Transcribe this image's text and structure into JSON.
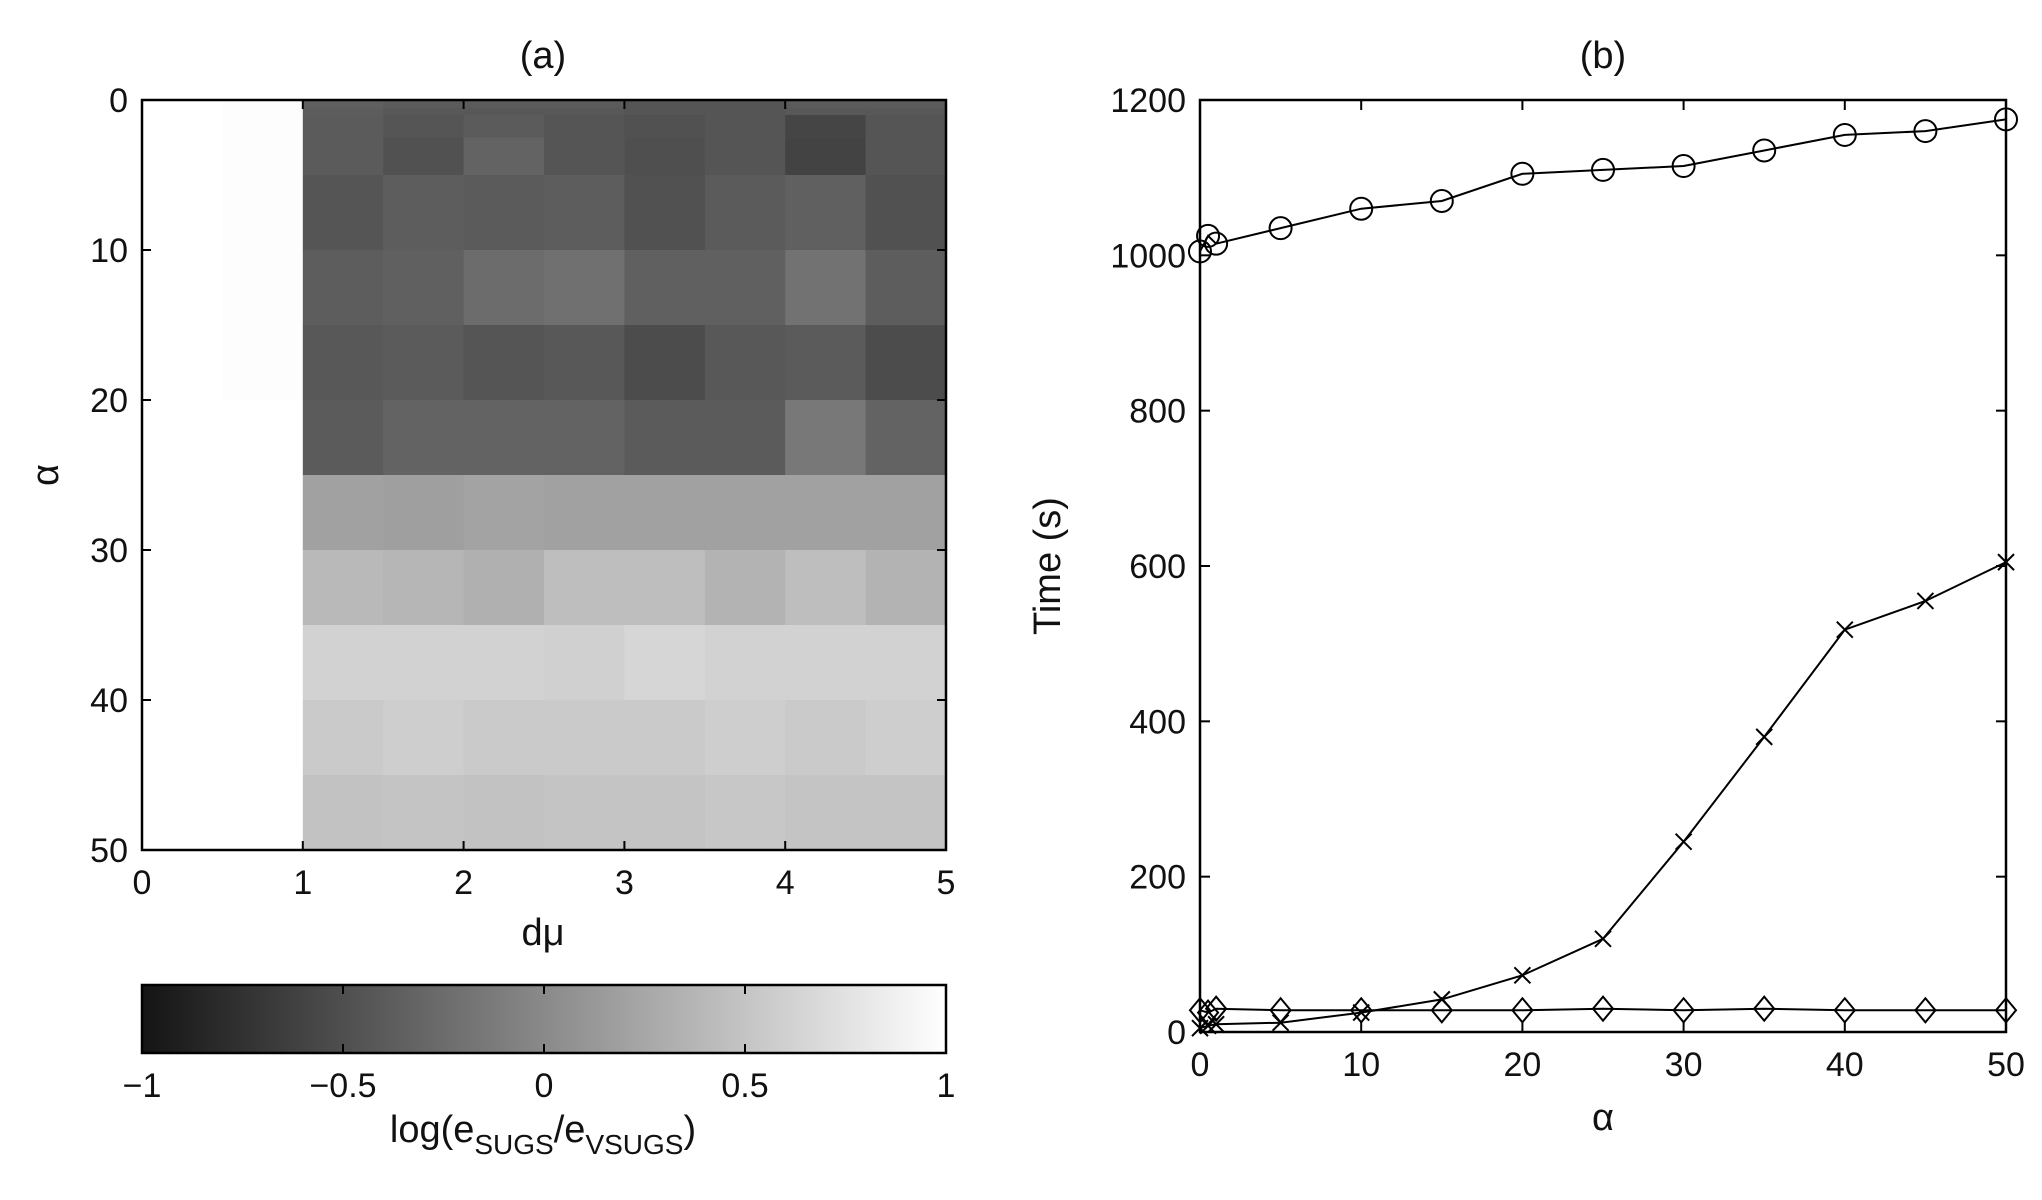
{
  "chart_data": [
    {
      "panel": "a",
      "type": "heatmap",
      "title": "(a)",
      "xlabel": "dμ",
      "ylabel": "α",
      "xlim": [
        0,
        5
      ],
      "ylim": [
        0,
        50
      ],
      "xticks": [
        "0",
        "1",
        "2",
        "3",
        "4",
        "5"
      ],
      "yticks": [
        "0",
        "10",
        "20",
        "30",
        "40",
        "50"
      ],
      "x_edges": [
        0,
        0.5,
        1,
        1.5,
        2,
        2.5,
        3,
        3.5,
        4,
        4.5,
        5
      ],
      "y_edges": [
        0,
        0.5,
        1,
        2.5,
        5,
        10,
        15,
        20,
        25,
        30,
        35,
        40,
        45,
        50
      ],
      "values": [
        [
          1.0,
          0.98,
          -0.35,
          -0.4,
          -0.4,
          -0.4,
          -0.45,
          -0.45,
          -0.4,
          -0.4
        ],
        [
          1.0,
          0.98,
          -0.38,
          -0.42,
          -0.42,
          -0.42,
          -0.45,
          -0.45,
          -0.42,
          -0.42
        ],
        [
          1.0,
          0.98,
          -0.4,
          -0.45,
          -0.4,
          -0.45,
          -0.48,
          -0.45,
          -0.58,
          -0.45
        ],
        [
          1.0,
          0.98,
          -0.4,
          -0.48,
          -0.33,
          -0.45,
          -0.5,
          -0.45,
          -0.6,
          -0.45
        ],
        [
          1.0,
          0.98,
          -0.45,
          -0.38,
          -0.4,
          -0.38,
          -0.48,
          -0.4,
          -0.35,
          -0.48
        ],
        [
          1.0,
          0.98,
          -0.38,
          -0.35,
          -0.25,
          -0.22,
          -0.35,
          -0.35,
          -0.2,
          -0.38
        ],
        [
          1.0,
          0.98,
          -0.42,
          -0.4,
          -0.45,
          -0.42,
          -0.52,
          -0.42,
          -0.4,
          -0.52
        ],
        [
          1.0,
          1.0,
          -0.4,
          -0.33,
          -0.33,
          -0.33,
          -0.4,
          -0.4,
          -0.15,
          -0.33
        ],
        [
          1.0,
          1.0,
          0.2,
          0.18,
          0.22,
          0.2,
          0.2,
          0.2,
          0.2,
          0.2
        ],
        [
          1.0,
          1.0,
          0.4,
          0.38,
          0.33,
          0.45,
          0.45,
          0.35,
          0.45,
          0.35
        ],
        [
          1.0,
          1.0,
          0.62,
          0.62,
          0.62,
          0.6,
          0.65,
          0.62,
          0.62,
          0.62
        ],
        [
          1.0,
          1.0,
          0.55,
          0.58,
          0.55,
          0.55,
          0.55,
          0.58,
          0.55,
          0.58
        ],
        [
          1.0,
          1.0,
          0.48,
          0.5,
          0.48,
          0.5,
          0.5,
          0.52,
          0.5,
          0.5
        ]
      ],
      "colorbar": {
        "range": [
          -1,
          1
        ],
        "ticks": [
          "−1",
          "−0.5",
          "0",
          "0.5",
          "1"
        ],
        "colormap": "gray",
        "label_main": "log(e",
        "label_sub1": "SUGS",
        "label_mid": "/e",
        "label_sub2": "VSUGS",
        "label_end": ")"
      }
    },
    {
      "panel": "b",
      "type": "line",
      "title": "(b)",
      "xlabel": "α",
      "ylabel": "Time (s)",
      "xlim": [
        0,
        50
      ],
      "ylim": [
        0,
        1200
      ],
      "xticks": [
        "0",
        "10",
        "20",
        "30",
        "40",
        "50"
      ],
      "yticks": [
        "0",
        "200",
        "400",
        "600",
        "800",
        "1000",
        "1200"
      ],
      "series": [
        {
          "name": "circle series",
          "marker": "circle",
          "x": [
            0,
            0.5,
            1,
            5,
            10,
            15,
            20,
            25,
            30,
            35,
            40,
            45,
            50
          ],
          "values": [
            1005,
            1025,
            1015,
            1035,
            1060,
            1070,
            1105,
            1110,
            1115,
            1135,
            1155,
            1160,
            1175
          ]
        },
        {
          "name": "cross series",
          "marker": "cross",
          "x": [
            0,
            0.5,
            1,
            5,
            10,
            15,
            20,
            25,
            30,
            35,
            40,
            45,
            50
          ],
          "values": [
            5,
            8,
            10,
            12,
            25,
            42,
            73,
            120,
            245,
            380,
            518,
            555,
            605
          ]
        },
        {
          "name": "diamond series",
          "marker": "diamond",
          "x": [
            0,
            0.5,
            1,
            5,
            10,
            15,
            20,
            25,
            30,
            35,
            40,
            45,
            50
          ],
          "values": [
            28,
            25,
            30,
            28,
            28,
            28,
            28,
            30,
            28,
            30,
            28,
            28,
            28
          ]
        }
      ]
    }
  ]
}
